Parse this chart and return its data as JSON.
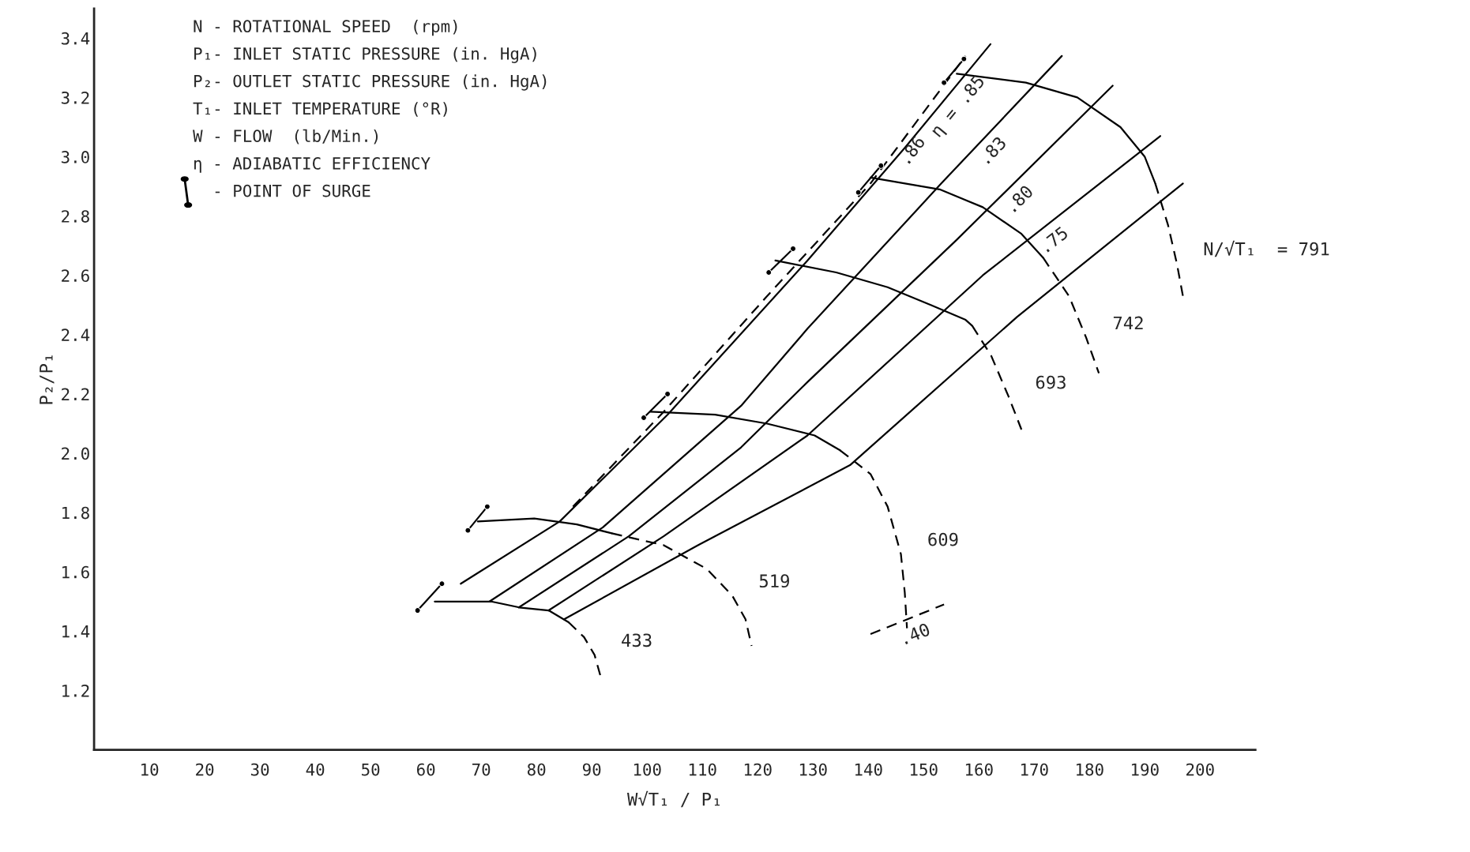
{
  "chart_data": {
    "type": "line",
    "xlabel": "W√T₁ / P₁",
    "ylabel": "P₂/P₁",
    "xlim": [
      0,
      210
    ],
    "ylim": [
      1.0,
      3.5
    ],
    "xticks": [
      10,
      20,
      30,
      40,
      50,
      60,
      70,
      80,
      90,
      100,
      110,
      120,
      130,
      140,
      150,
      160,
      170,
      180,
      190,
      200
    ],
    "yticks": [
      1.2,
      1.4,
      1.6,
      1.8,
      {
        "value": 2,
        "label": "2.0"
      },
      2.2,
      2.4,
      2.6,
      2.8,
      {
        "value": 3,
        "label": "3.0"
      },
      3.2,
      3.4
    ],
    "grid": false,
    "legend": false,
    "series": [
      {
        "color": "#000000",
        "line_style": "solid",
        "x": [
          61.6,
          71.8,
          76.9,
          82.2,
          85.8
        ],
        "values": [
          1.5,
          1.5,
          1.48,
          1.47,
          1.43
        ]
      },
      {
        "name": "433",
        "color": "#000000",
        "line_style": "dashed",
        "x": [
          85.8,
          88.6,
          90.5,
          91.7
        ],
        "values": [
          1.43,
          1.38,
          1.32,
          1.24
        ]
      },
      {
        "color": "#000000",
        "line_style": "solid",
        "x": [
          69.4,
          79.6,
          87.3,
          93.6
        ],
        "values": [
          1.77,
          1.78,
          1.76,
          1.73
        ]
      },
      {
        "name": "519",
        "color": "#000000",
        "line_style": "dashed",
        "x": [
          93.6,
          103.0,
          110.8,
          115.4,
          117.8,
          118.9
        ],
        "values": [
          1.73,
          1.69,
          1.61,
          1.52,
          1.44,
          1.35
        ]
      },
      {
        "color": "#000000",
        "line_style": "solid",
        "x": [
          100.6,
          112.3,
          121.7,
          130.3,
          134.9
        ],
        "values": [
          2.14,
          2.13,
          2.1,
          2.06,
          2.01
        ]
      },
      {
        "name": "609",
        "color": "#000000",
        "line_style": "dashed",
        "x": [
          134.9,
          140.4,
          143.5,
          145.9,
          146.6,
          147.0
        ],
        "values": [
          2.01,
          1.93,
          1.82,
          1.66,
          1.53,
          1.41
        ]
      },
      {
        "color": "#000000",
        "line_style": "solid",
        "x": [
          123.2,
          134.2,
          143.5,
          151.3,
          157.6,
          158.8
        ],
        "values": [
          2.65,
          2.61,
          2.56,
          2.5,
          2.45,
          2.43
        ]
      },
      {
        "name": "693",
        "color": "#000000",
        "line_style": "dashed",
        "x": [
          158.8,
          162.2,
          165.4,
          167.7
        ],
        "values": [
          2.43,
          2.33,
          2.19,
          2.08
        ]
      },
      {
        "color": "#000000",
        "line_style": "solid",
        "x": [
          140.4,
          152.9,
          160.7,
          167.7,
          171.6
        ],
        "values": [
          2.93,
          2.89,
          2.83,
          2.74,
          2.66
        ]
      },
      {
        "name": "742",
        "color": "#000000",
        "line_style": "dashed",
        "x": [
          171.6,
          176.3,
          179.4,
          181.7
        ],
        "values": [
          2.66,
          2.53,
          2.39,
          2.27
        ]
      },
      {
        "color": "#000000",
        "line_style": "solid",
        "x": [
          156.0,
          168.5,
          177.8,
          185.6,
          190.0,
          191.9
        ],
        "values": [
          3.28,
          3.25,
          3.2,
          3.1,
          3.0,
          2.91
        ]
      },
      {
        "name": "N/√T₁  = 791",
        "color": "#000000",
        "line_style": "dashed",
        "x": [
          191.9,
          194.2,
          195.8,
          196.9
        ],
        "values": [
          2.91,
          2.77,
          2.64,
          2.53
        ]
      },
      {
        "name": "η = .85",
        "color": "#000000",
        "line_style": "solid",
        "x": [
          66.3,
          84.2,
          103.7,
          129.0,
          146.6,
          162.1
        ],
        "values": [
          1.56,
          1.77,
          2.13,
          2.65,
          3.03,
          3.38
        ]
      },
      {
        "name": ".83",
        "color": "#000000",
        "line_style": "solid",
        "x": [
          71.5,
          92.0,
          117.0,
          129.0,
          153.2,
          175.0
        ],
        "values": [
          1.5,
          1.75,
          2.16,
          2.42,
          2.91,
          3.34
        ]
      },
      {
        "name": ".80",
        "color": "#000000",
        "line_style": "solid",
        "x": [
          76.8,
          96.7,
          117.0,
          129.0,
          156.0,
          184.2
        ],
        "values": [
          1.48,
          1.72,
          2.02,
          2.24,
          2.72,
          3.24
        ]
      },
      {
        "name": ".75",
        "color": "#000000",
        "line_style": "solid",
        "x": [
          82.2,
          103.0,
          129.0,
          160.7,
          192.8
        ],
        "values": [
          1.47,
          1.72,
          2.06,
          2.6,
          3.07
        ]
      },
      {
        "color": "#000000",
        "line_style": "solid",
        "x": [
          85.0,
          109.2,
          136.7,
          166.9,
          196.9
        ],
        "values": [
          1.44,
          1.69,
          1.96,
          2.46,
          2.91
        ]
      },
      {
        "name": ".86",
        "color": "#000000",
        "line_style": "dashed",
        "x": [
          86.6,
          103.0,
          121.7,
          140.4,
          157.6
        ],
        "values": [
          1.82,
          2.14,
          2.53,
          2.91,
          3.34
        ]
      },
      {
        "name": ".40",
        "color": "#000000",
        "line_style": "dashed",
        "x": [
          140.4,
          153.7
        ],
        "values": [
          1.39,
          1.49
        ]
      },
      {
        "color": "#000000",
        "line_style": "solid",
        "marker": "circle",
        "x": [
          58.5,
          62.9
        ],
        "values": [
          1.47,
          1.56
        ]
      },
      {
        "color": "#000000",
        "line_style": "solid",
        "marker": "circle",
        "x": [
          67.6,
          71.1
        ],
        "values": [
          1.74,
          1.82
        ]
      },
      {
        "color": "#000000",
        "line_style": "solid",
        "marker": "circle",
        "x": [
          99.4,
          103.7
        ],
        "values": [
          2.12,
          2.2
        ]
      },
      {
        "color": "#000000",
        "line_style": "solid",
        "marker": "circle",
        "x": [
          122.0,
          126.4
        ],
        "values": [
          2.61,
          2.69
        ]
      },
      {
        "color": "#000000",
        "line_style": "solid",
        "marker": "circle",
        "x": [
          138.2,
          142.3
        ],
        "values": [
          2.88,
          2.97
        ]
      },
      {
        "color": "#000000",
        "line_style": "solid",
        "marker": "circle",
        "x": [
          153.7,
          157.3
        ],
        "values": [
          3.25,
          3.33
        ]
      }
    ],
    "annotations": [
      "N - ROTATIONAL SPEED  (rpm)",
      "P₁- INLET STATIC PRESSURE (in. HgA)",
      "P₂- OUTLET STATIC PRESSURE (in. HgA)",
      "T₁- INLET TEMPERATURE (°R)",
      "W - FLOW  (lb/Min.)",
      "η - ADIABATIC EFFICIENCY",
      "  - POINT OF SURGE"
    ]
  }
}
